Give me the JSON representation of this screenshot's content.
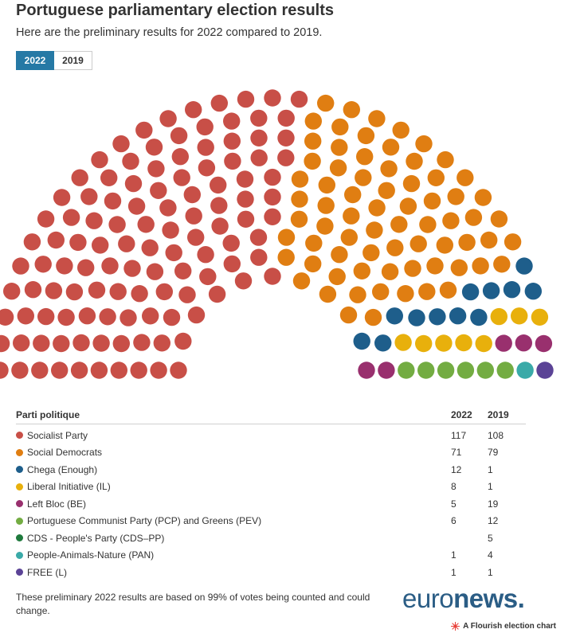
{
  "header": {
    "title": "Portuguese parliamentary election results",
    "subtitle": "Here are the preliminary results for 2022 compared to 2019."
  },
  "toggle": {
    "selected": "2022",
    "options": [
      "2022",
      "2019"
    ]
  },
  "chart_data": {
    "type": "parliament",
    "selected_year": "2022",
    "parties": [
      {
        "name": "Socialist Party",
        "color": "#c84f47",
        "seats_2022": 117,
        "seats_2019": 108
      },
      {
        "name": "Social Democrats",
        "color": "#e07e12",
        "seats_2022": 71,
        "seats_2019": 79
      },
      {
        "name": "Chega (Enough)",
        "color": "#1e5e8b",
        "seats_2022": 12,
        "seats_2019": 1
      },
      {
        "name": "Liberal Initiative (IL)",
        "color": "#e8b00c",
        "seats_2022": 8,
        "seats_2019": 1
      },
      {
        "name": "Left Bloc (BE)",
        "color": "#99306e",
        "seats_2022": 5,
        "seats_2019": 19
      },
      {
        "name": "Portuguese Communist Party (PCP) and Greens (PEV)",
        "color": "#73ac42",
        "seats_2022": 6,
        "seats_2019": 12
      },
      {
        "name": "CDS - People's Party (CDS–PP)",
        "color": "#1f7a3d",
        "seats_2022": null,
        "seats_2019": 5
      },
      {
        "name": "People-Animals-Nature (PAN)",
        "color": "#3aaaa8",
        "seats_2022": 1,
        "seats_2019": 4
      },
      {
        "name": "FREE (L)",
        "color": "#5b4396",
        "seats_2022": 1,
        "seats_2019": 1
      }
    ]
  },
  "table": {
    "col_party": "Parti politique",
    "col_2022": "2022",
    "col_2019": "2019",
    "rows": [
      {
        "name": "Socialist Party",
        "v2022": "117",
        "v2019": "108"
      },
      {
        "name": "Social Democrats",
        "v2022": "71",
        "v2019": "79"
      },
      {
        "name": "Chega (Enough)",
        "v2022": "12",
        "v2019": "1"
      },
      {
        "name": "Liberal Initiative (IL)",
        "v2022": "8",
        "v2019": "1"
      },
      {
        "name": "Left Bloc (BE)",
        "v2022": "5",
        "v2019": "19"
      },
      {
        "name": "Portuguese Communist Party (PCP) and Greens (PEV)",
        "v2022": "6",
        "v2019": "12"
      },
      {
        "name": "CDS - People's Party (CDS–PP)",
        "v2022": "",
        "v2019": "5"
      },
      {
        "name": "People-Animals-Nature (PAN)",
        "v2022": "1",
        "v2019": "4"
      },
      {
        "name": "FREE (L)",
        "v2022": "1",
        "v2019": "1"
      }
    ]
  },
  "footer": {
    "note": "These preliminary 2022 results are based on 99% of votes being counted and could change.",
    "logo_light": "euro",
    "logo_bold": "news.",
    "flourish_credit": "A Flourish election chart",
    "flourish_icon": "flourish-star-icon"
  }
}
